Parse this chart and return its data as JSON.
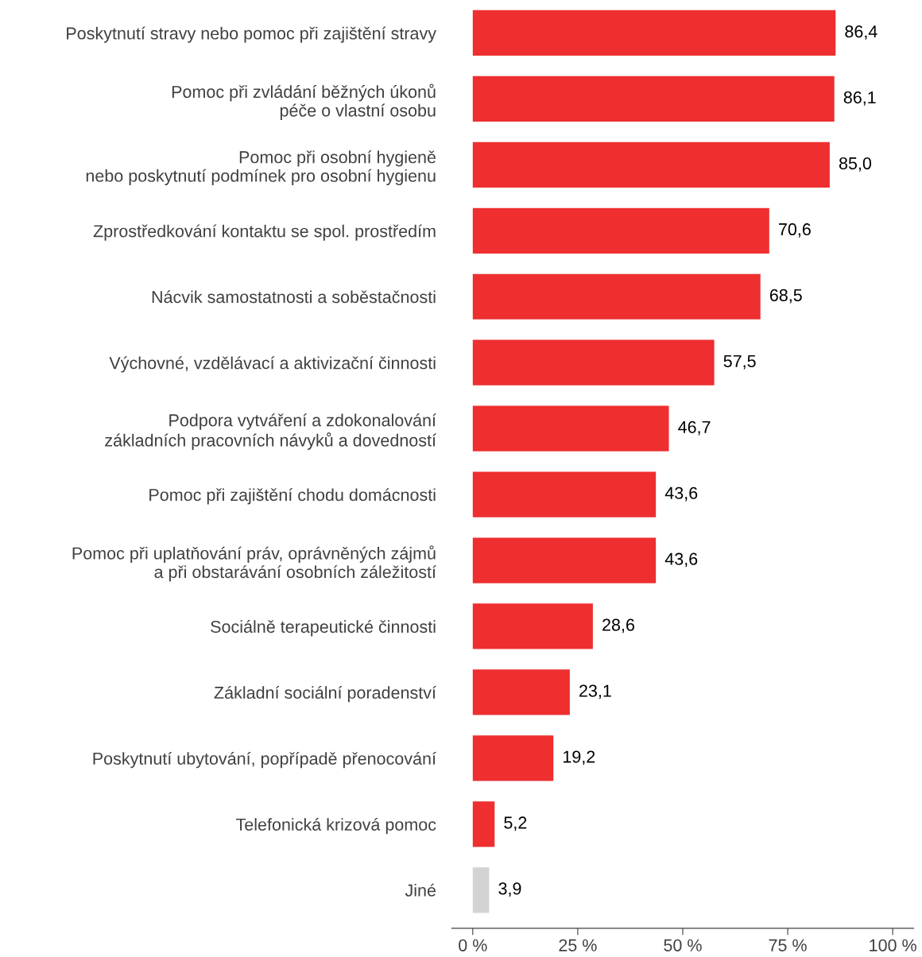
{
  "chart_data": {
    "type": "bar",
    "orientation": "horizontal",
    "categories": [
      "Poskytnutí stravy nebo pomoc při zajištění stravy",
      "Pomoc při zvládání běžných úkonů\npéče o vlastní osobu",
      "Pomoc při osobní hygieně\nnebo poskytnutí podmínek pro osobní hygienu",
      "Zprostředkování kontaktu se spol. prostředím",
      "Nácvik samostatnosti a soběstačnosti",
      "Výchovné, vzdělávací a aktivizační činnosti",
      "Podpora vytváření a zdokonalování\nzákladních pracovních návyků a dovedností",
      "Pomoc při zajištění chodu domácnosti",
      "Pomoc při uplatňování práv, oprávněných zájmů\na při obstarávání osobních záležitostí",
      "Sociálně terapeutické činnosti",
      "Základní sociální poradenství",
      "Poskytnutí ubytování, popřípadě přenocování",
      "Telefonická krizová pomoc",
      "Jiné"
    ],
    "values": [
      86.4,
      86.1,
      85.0,
      70.6,
      68.5,
      57.5,
      46.7,
      43.6,
      43.6,
      28.6,
      23.1,
      19.2,
      5.2,
      3.9
    ],
    "value_labels": [
      "86,4",
      "86,1",
      "85,0",
      "70,6",
      "68,5",
      "57,5",
      "46,7",
      "43,6",
      "43,6",
      "28,6",
      "23,1",
      "19,2",
      "5,2",
      "3,9"
    ],
    "colors": [
      "#ee2e2f",
      "#ee2e2f",
      "#ee2e2f",
      "#ee2e2f",
      "#ee2e2f",
      "#ee2e2f",
      "#ee2e2f",
      "#ee2e2f",
      "#ee2e2f",
      "#ee2e2f",
      "#ee2e2f",
      "#ee2e2f",
      "#ee2e2f",
      "#d3d3d3"
    ],
    "xlim": [
      -5,
      105
    ],
    "xticks": [
      {
        "value": 0,
        "label": "0 %"
      },
      {
        "value": 25,
        "label": "25 %"
      },
      {
        "value": 50,
        "label": "50 %"
      },
      {
        "value": 75,
        "label": "75 %"
      },
      {
        "value": 100,
        "label": "100 %"
      }
    ],
    "grid": false,
    "legend": false
  }
}
